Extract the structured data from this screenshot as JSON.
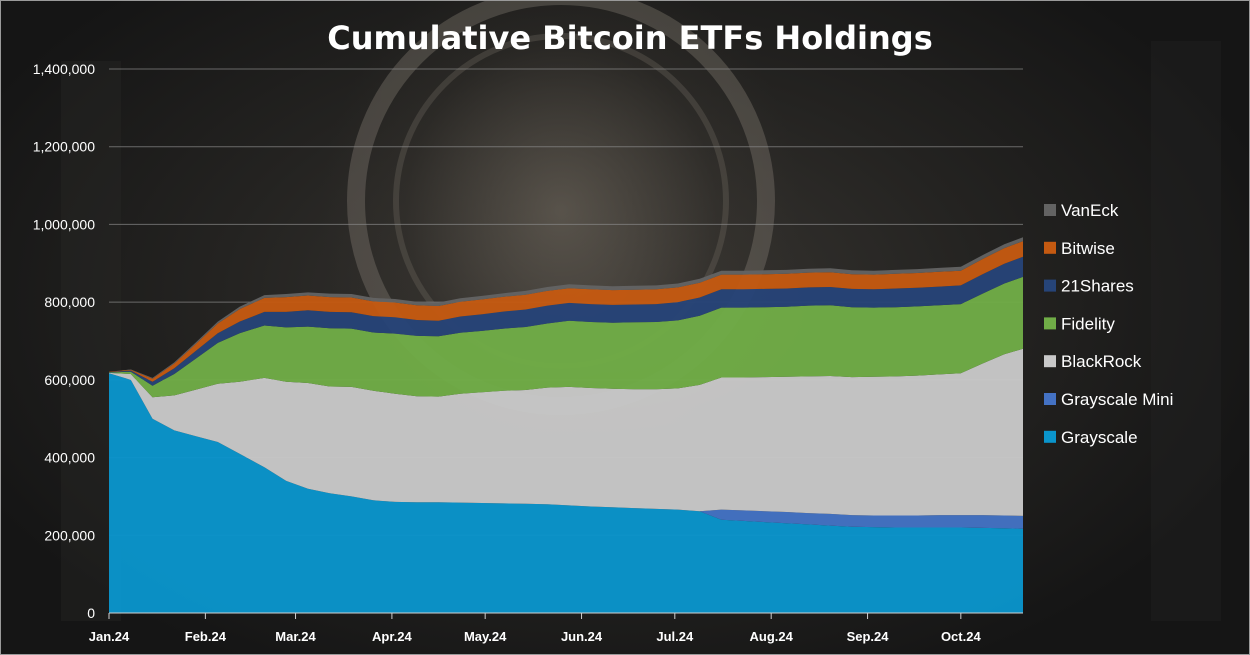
{
  "chart_data": {
    "type": "area",
    "title": "Cumulative Bitcoin ETFs Holdings",
    "xlabel": "",
    "ylabel": "",
    "ylim": [
      0,
      1400000
    ],
    "yticks": [
      0,
      200000,
      400000,
      600000,
      800000,
      1000000,
      1200000,
      1400000
    ],
    "ytick_labels": [
      "0",
      "200,000",
      "400,000",
      "600,000",
      "800,000",
      "1,000,000",
      "1,200,000",
      "1,400,000"
    ],
    "x_range": [
      "2024-01-11",
      "2024-10-31"
    ],
    "xticks": [
      "2024-01-11",
      "2024-02-11",
      "2024-03-11",
      "2024-04-11",
      "2024-05-11",
      "2024-06-11",
      "2024-07-11",
      "2024-08-11",
      "2024-09-11",
      "2024-10-11"
    ],
    "xtick_labels": [
      "Jan.24",
      "Feb.24",
      "Mar.24",
      "Apr.24",
      "May.24",
      "Jun.24",
      "Jul.24",
      "Aug.24",
      "Sep.24",
      "Oct.24"
    ],
    "grid": true,
    "legend_position": "right",
    "x": [
      "2024-01-11",
      "2024-01-18",
      "2024-01-25",
      "2024-02-01",
      "2024-02-08",
      "2024-02-15",
      "2024-02-22",
      "2024-03-01",
      "2024-03-08",
      "2024-03-15",
      "2024-03-22",
      "2024-03-29",
      "2024-04-05",
      "2024-04-12",
      "2024-04-19",
      "2024-04-26",
      "2024-05-03",
      "2024-05-10",
      "2024-05-17",
      "2024-05-24",
      "2024-05-31",
      "2024-06-07",
      "2024-06-14",
      "2024-06-21",
      "2024-06-28",
      "2024-07-05",
      "2024-07-12",
      "2024-07-19",
      "2024-07-26",
      "2024-08-02",
      "2024-08-09",
      "2024-08-16",
      "2024-08-23",
      "2024-08-30",
      "2024-09-06",
      "2024-09-13",
      "2024-09-20",
      "2024-09-27",
      "2024-10-04",
      "2024-10-11",
      "2024-10-18",
      "2024-10-25",
      "2024-10-31"
    ],
    "series": [
      {
        "name": "Grayscale",
        "color": "#0a95cc",
        "values": [
          617000,
          600000,
          500000,
          470000,
          455000,
          440000,
          410000,
          375000,
          340000,
          320000,
          308000,
          300000,
          290000,
          286000,
          285000,
          285000,
          284000,
          283000,
          282000,
          281000,
          280000,
          277000,
          274000,
          272000,
          270000,
          268000,
          266000,
          262000,
          240000,
          237000,
          234000,
          231000,
          228000,
          225000,
          222000,
          221000,
          220000,
          220000,
          220000,
          220000,
          219000,
          218000,
          217000
        ]
      },
      {
        "name": "Grayscale Mini",
        "color": "#4472c4",
        "values": [
          0,
          0,
          0,
          0,
          0,
          0,
          0,
          0,
          0,
          0,
          0,
          0,
          0,
          0,
          0,
          0,
          0,
          0,
          0,
          0,
          0,
          0,
          0,
          0,
          0,
          0,
          0,
          0,
          26000,
          27000,
          28000,
          29000,
          29000,
          30000,
          30000,
          30000,
          31000,
          31000,
          32000,
          32000,
          33000,
          33000,
          33000
        ]
      },
      {
        "name": "BlackRock",
        "color": "#c9c9c9",
        "values": [
          1000,
          15000,
          55000,
          90000,
          120000,
          150000,
          185000,
          230000,
          255000,
          272000,
          275000,
          282000,
          282000,
          278000,
          273000,
          272000,
          280000,
          285000,
          290000,
          293000,
          300000,
          305000,
          305000,
          305000,
          306000,
          308000,
          312000,
          325000,
          340000,
          342000,
          345000,
          348000,
          352000,
          355000,
          355000,
          357000,
          358000,
          360000,
          362000,
          365000,
          390000,
          415000,
          430000
        ]
      },
      {
        "name": "Fidelity",
        "color": "#70ad47",
        "values": [
          1000,
          6000,
          30000,
          55000,
          80000,
          105000,
          125000,
          135000,
          140000,
          145000,
          150000,
          150000,
          150000,
          155000,
          155000,
          155000,
          157000,
          158000,
          160000,
          162000,
          165000,
          170000,
          170000,
          170000,
          172000,
          173000,
          175000,
          178000,
          180000,
          180000,
          180000,
          180000,
          182000,
          182000,
          180000,
          178000,
          178000,
          178000,
          178000,
          178000,
          180000,
          182000,
          185000
        ]
      },
      {
        "name": "21Shares",
        "color": "#264478",
        "values": [
          1000,
          3000,
          10000,
          15000,
          20000,
          25000,
          30000,
          35000,
          40000,
          42000,
          42000,
          42000,
          42000,
          42000,
          41000,
          40000,
          42000,
          43000,
          44000,
          45000,
          46000,
          46000,
          46000,
          46000,
          46000,
          46000,
          47000,
          47000,
          47000,
          47000,
          47000,
          47000,
          47000,
          47000,
          47000,
          47000,
          48000,
          48000,
          48000,
          48000,
          50000,
          51000,
          52000
        ]
      },
      {
        "name": "Bitwise",
        "color": "#c55a11",
        "values": [
          1000,
          2000,
          8000,
          12000,
          18000,
          25000,
          32000,
          36000,
          38000,
          38000,
          38000,
          38000,
          38000,
          38000,
          38000,
          38000,
          38000,
          38000,
          38000,
          38000,
          38000,
          38000,
          38000,
          38000,
          38000,
          38000,
          38000,
          38000,
          38000,
          38000,
          38000,
          38000,
          38000,
          38000,
          38000,
          38000,
          38000,
          38000,
          38000,
          38000,
          39000,
          40000,
          40000
        ]
      },
      {
        "name": "VanEck",
        "color": "#636363",
        "values": [
          0,
          1000,
          2000,
          3000,
          4000,
          5000,
          6000,
          7000,
          8000,
          8000,
          9000,
          9000,
          9000,
          9000,
          9000,
          9000,
          9000,
          9000,
          9000,
          10000,
          10000,
          10000,
          10000,
          10000,
          10000,
          10000,
          10000,
          10000,
          10000,
          10000,
          10000,
          10000,
          10000,
          10000,
          10000,
          10000,
          10000,
          10000,
          10000,
          10000,
          10000,
          10000,
          10000
        ]
      }
    ],
    "legend_order": [
      "VanEck",
      "Bitwise",
      "21Shares",
      "Fidelity",
      "BlackRock",
      "Grayscale Mini",
      "Grayscale"
    ]
  }
}
